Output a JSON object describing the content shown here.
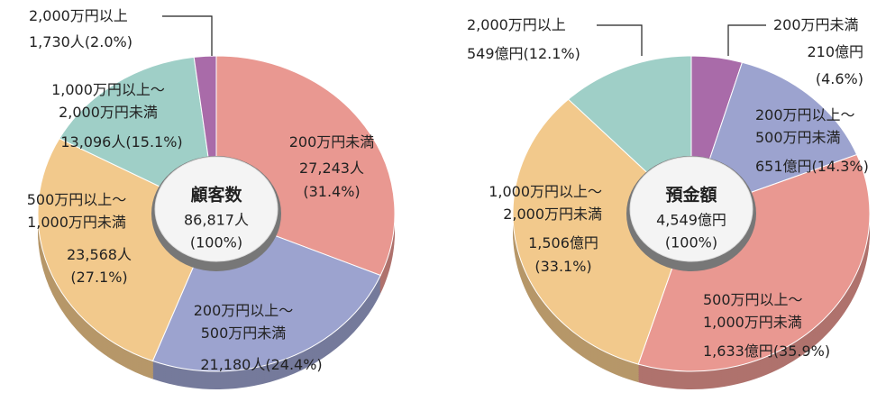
{
  "chart_data": [
    {
      "type": "pie",
      "center_title": "顧客数",
      "total_label": "86,817人",
      "total_percent_label": "(100%)",
      "categories": [
        [
          "200万円未満"
        ],
        [
          "200万円以上～",
          "500万円未満"
        ],
        [
          "500万円以上～",
          "1,000万円未満"
        ],
        [
          "1,000万円以上～",
          "2,000万円未満"
        ],
        [
          "2,000万円以上"
        ]
      ],
      "count_labels": [
        "27,243人",
        "21,180人",
        "23,568人",
        "13,096人",
        "1,730人"
      ],
      "values": [
        31.4,
        24.4,
        27.1,
        15.1,
        2.0
      ],
      "value_labels": [
        "(31.4%)",
        "(24.4%)",
        "(27.1%)",
        "(15.1%)",
        "(2.0%)"
      ],
      "colors": [
        "#e99891",
        "#9ca3cf",
        "#f2c98c",
        "#9fcfc7",
        "#a96ba9"
      ]
    },
    {
      "type": "pie",
      "center_title": "預金額",
      "total_label": "4,549億円",
      "total_percent_label": "(100%)",
      "categories": [
        [
          "200万円未満"
        ],
        [
          "200万円以上～",
          "500万円未満"
        ],
        [
          "500万円以上～",
          "1,000万円未満"
        ],
        [
          "1,000万円以上～",
          "2,000万円未満"
        ],
        [
          "2,000万円以上"
        ]
      ],
      "count_labels": [
        "210億円",
        "651億円",
        "1,633億円",
        "1,506億円",
        "549億円"
      ],
      "values": [
        4.6,
        14.3,
        35.9,
        33.1,
        12.1
      ],
      "value_labels": [
        "(4.6%)",
        "(14.3%)",
        "(35.9%)",
        "(33.1%)",
        "(12.1%)"
      ],
      "colors": [
        "#a96ba9",
        "#9ca3cf",
        "#e99891",
        "#f2c98c",
        "#9fcfc7"
      ]
    }
  ]
}
